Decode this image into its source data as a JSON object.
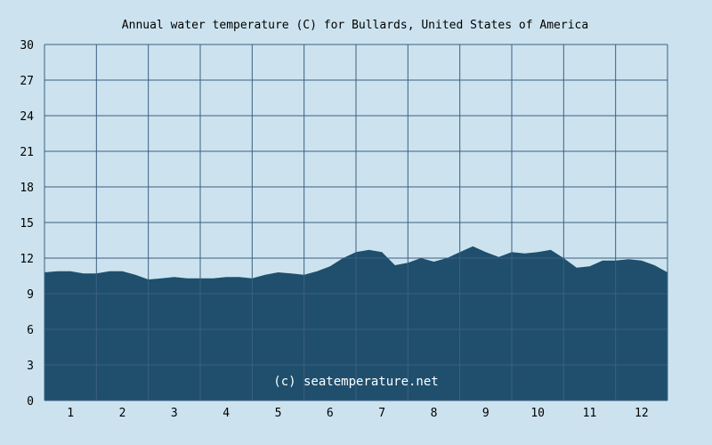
{
  "chart_data": {
    "type": "area",
    "title": "Annual water temperature (C) for Bullards, United States of America",
    "xlabel": "",
    "ylabel": "",
    "watermark": "(c) seatemperature.net",
    "ylim": [
      0,
      30
    ],
    "yticks": [
      0,
      3,
      6,
      9,
      12,
      15,
      18,
      21,
      24,
      27,
      30
    ],
    "xticks": [
      "1",
      "2",
      "3",
      "4",
      "5",
      "6",
      "7",
      "8",
      "9",
      "10",
      "11",
      "12"
    ],
    "grid": true,
    "colors": {
      "background": "#cce3ef",
      "fill": "#1f4f6d",
      "grid": "#3c5f80"
    },
    "x": [
      0.0,
      0.25,
      0.5,
      0.75,
      1.0,
      1.25,
      1.5,
      1.75,
      2.0,
      2.25,
      2.5,
      2.75,
      3.0,
      3.25,
      3.5,
      3.75,
      4.0,
      4.25,
      4.5,
      4.75,
      5.0,
      5.25,
      5.5,
      5.75,
      6.0,
      6.25,
      6.5,
      6.75,
      7.0,
      7.25,
      7.5,
      7.75,
      8.0,
      8.25,
      8.5,
      8.75,
      9.0,
      9.25,
      9.5,
      9.75,
      10.0,
      10.25,
      10.5,
      10.75,
      11.0,
      11.25,
      11.5,
      11.75,
      12.0
    ],
    "values": [
      10.8,
      10.9,
      10.9,
      10.7,
      10.7,
      10.9,
      10.9,
      10.6,
      10.2,
      10.3,
      10.4,
      10.3,
      10.3,
      10.3,
      10.4,
      10.4,
      10.3,
      10.6,
      10.8,
      10.7,
      10.6,
      10.9,
      11.3,
      12.0,
      12.5,
      12.7,
      12.5,
      11.4,
      11.6,
      12.0,
      11.7,
      12.0,
      12.5,
      13.0,
      12.5,
      12.1,
      12.5,
      12.4,
      12.5,
      12.7,
      12.0,
      11.2,
      11.3,
      11.8,
      11.8,
      11.9,
      11.8,
      11.4,
      10.8
    ]
  }
}
